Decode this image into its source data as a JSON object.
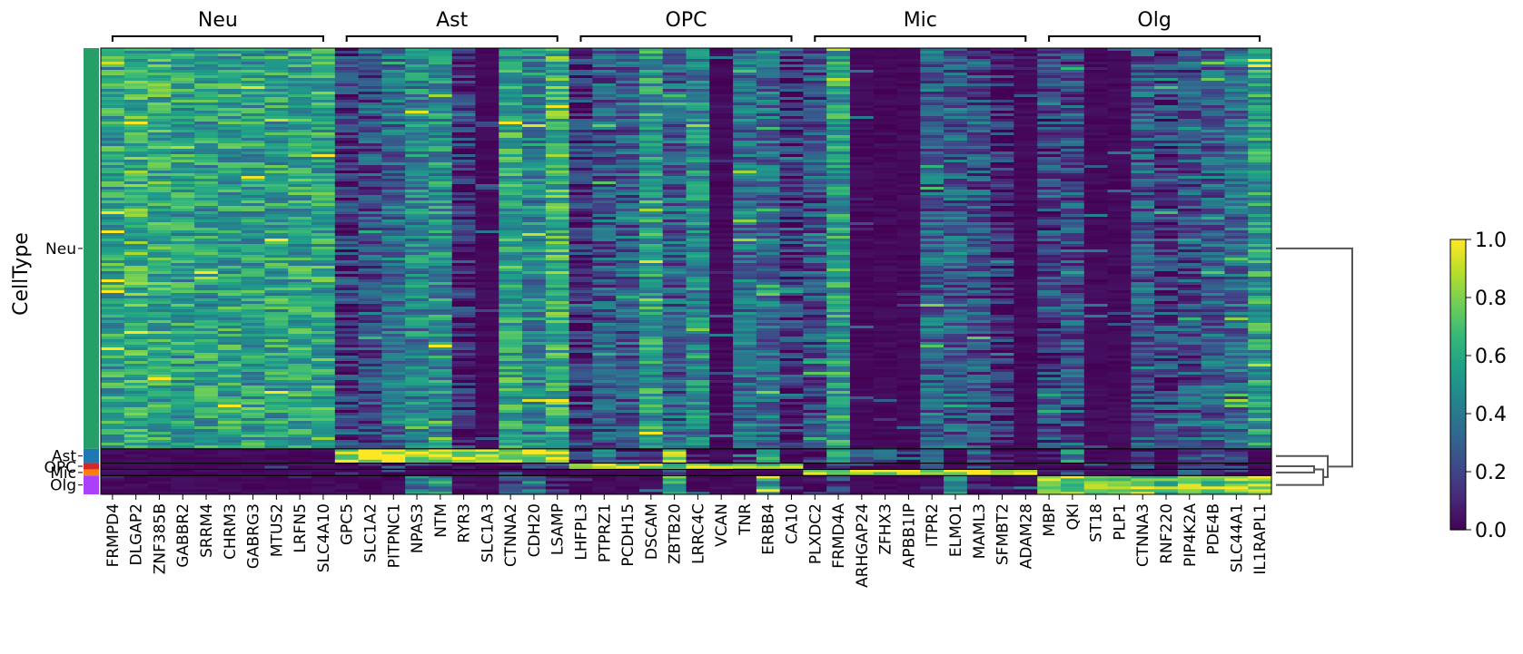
{
  "chart_data": {
    "type": "heatmap",
    "ylabel": "CellType",
    "groups": [
      {
        "name": "Neu",
        "genes": [
          "FRMPD4",
          "DLGAP2",
          "ZNF385B",
          "GABBR2",
          "SRRM4",
          "CHRM3",
          "GABRG3",
          "MTUS2",
          "LRFN5",
          "SLC4A10"
        ]
      },
      {
        "name": "Ast",
        "genes": [
          "GPC5",
          "SLC1A2",
          "PITPNC1",
          "NPAS3",
          "NTM",
          "RYR3",
          "SLC1A3",
          "CTNNA2",
          "CDH20",
          "LSAMP"
        ]
      },
      {
        "name": "OPC",
        "genes": [
          "LHFPL3",
          "PTPRZ1",
          "PCDH15",
          "DSCAM",
          "ZBTB20",
          "LRRC4C",
          "VCAN",
          "TNR",
          "ERBB4",
          "CA10"
        ]
      },
      {
        "name": "Mic",
        "genes": [
          "PLXDC2",
          "FRMD4A",
          "ARHGAP24",
          "ZFHX3",
          "APBB1IP",
          "ITPR2",
          "ELMO1",
          "MAML3",
          "SFMBT2",
          "ADAM28"
        ]
      },
      {
        "name": "Olg",
        "genes": [
          "MBP",
          "QKI",
          "ST18",
          "PLP1",
          "CTNNA3",
          "RNF220",
          "PIP4K2A",
          "PDE4B",
          "SLC44A1",
          "IL1RAPL1"
        ]
      }
    ],
    "cell_types": [
      {
        "name": "Neu",
        "fraction": 0.898,
        "color": "#279e68"
      },
      {
        "name": "Ast",
        "fraction": 0.032,
        "color": "#1f77b4"
      },
      {
        "name": "OPC",
        "fraction": 0.014,
        "color": "#d62728"
      },
      {
        "name": "Mic",
        "fraction": 0.014,
        "color": "#ff7f0e"
      },
      {
        "name": "Olg",
        "fraction": 0.042,
        "color": "#aa40fc"
      }
    ],
    "mean_expression": {
      "Neu": [
        0.58,
        0.65,
        0.62,
        0.56,
        0.56,
        0.57,
        0.55,
        0.56,
        0.58,
        0.6,
        0.15,
        0.25,
        0.35,
        0.45,
        0.5,
        0.12,
        0.05,
        0.6,
        0.45,
        0.65,
        0.12,
        0.28,
        0.3,
        0.55,
        0.3,
        0.45,
        0.05,
        0.35,
        0.35,
        0.15,
        0.25,
        0.55,
        0.05,
        0.05,
        0.05,
        0.3,
        0.3,
        0.25,
        0.1,
        0.05,
        0.2,
        0.25,
        0.05,
        0.05,
        0.3,
        0.2,
        0.25,
        0.3,
        0.35,
        0.55
      ],
      "Ast": [
        0.05,
        0.05,
        0.05,
        0.05,
        0.05,
        0.05,
        0.05,
        0.05,
        0.05,
        0.05,
        0.9,
        0.92,
        0.88,
        0.92,
        0.9,
        0.88,
        0.9,
        0.85,
        0.85,
        0.95,
        0.1,
        0.4,
        0.2,
        0.1,
        0.75,
        0.1,
        0.05,
        0.1,
        0.5,
        0.05,
        0.1,
        0.55,
        0.35,
        0.2,
        0.2,
        0.5,
        0.05,
        0.3,
        0.1,
        0.05,
        0.1,
        0.5,
        0.05,
        0.05,
        0.1,
        0.05,
        0.2,
        0.3,
        0.2,
        0.05
      ],
      "OPC": [
        0.05,
        0.05,
        0.05,
        0.05,
        0.05,
        0.05,
        0.05,
        0.05,
        0.05,
        0.05,
        0.1,
        0.1,
        0.1,
        0.1,
        0.1,
        0.1,
        0.05,
        0.1,
        0.1,
        0.15,
        0.85,
        0.88,
        0.88,
        0.85,
        0.8,
        0.85,
        0.8,
        0.8,
        0.8,
        0.85,
        0.1,
        0.3,
        0.1,
        0.1,
        0.05,
        0.1,
        0.05,
        0.1,
        0.05,
        0.05,
        0.05,
        0.1,
        0.05,
        0.05,
        0.1,
        0.05,
        0.1,
        0.1,
        0.1,
        0.05
      ],
      "Mic": [
        0.05,
        0.05,
        0.05,
        0.05,
        0.05,
        0.05,
        0.05,
        0.05,
        0.05,
        0.05,
        0.1,
        0.05,
        0.1,
        0.05,
        0.05,
        0.05,
        0.05,
        0.05,
        0.05,
        0.1,
        0.05,
        0.05,
        0.05,
        0.05,
        0.1,
        0.05,
        0.05,
        0.05,
        0.05,
        0.05,
        0.85,
        0.8,
        0.85,
        0.88,
        0.9,
        0.75,
        0.9,
        0.85,
        0.8,
        0.8,
        0.05,
        0.1,
        0.05,
        0.05,
        0.05,
        0.05,
        0.2,
        0.2,
        0.1,
        0.05
      ],
      "Olg": [
        0.05,
        0.05,
        0.05,
        0.05,
        0.05,
        0.05,
        0.05,
        0.05,
        0.05,
        0.05,
        0.05,
        0.05,
        0.05,
        0.4,
        0.5,
        0.05,
        0.05,
        0.2,
        0.4,
        0.1,
        0.05,
        0.05,
        0.05,
        0.05,
        0.6,
        0.05,
        0.05,
        0.05,
        0.5,
        0.05,
        0.1,
        0.2,
        0.05,
        0.05,
        0.05,
        0.05,
        0.6,
        0.1,
        0.05,
        0.05,
        0.85,
        0.8,
        0.85,
        0.8,
        0.8,
        0.75,
        0.75,
        0.8,
        0.85,
        0.8
      ]
    },
    "colorbar": {
      "colormap": "viridis",
      "range": [
        0.0,
        1.0
      ],
      "ticks": [
        "0.0",
        "0.2",
        "0.4",
        "0.6",
        "0.8",
        "1.0"
      ]
    },
    "dendrogram": {
      "leaf_order": [
        "Ast",
        "OPC",
        "Mic",
        "Olg",
        "Neu"
      ],
      "merges": [
        [
          "OPC",
          "Mic"
        ],
        [
          "OPC+Mic",
          "Olg"
        ],
        [
          "Ast",
          "OPC+Mic+Olg"
        ],
        [
          "Ast+OPC+Mic+Olg",
          "Neu"
        ]
      ]
    },
    "colors": {
      "separator": "#000000",
      "dendrogram": "#555555"
    }
  }
}
